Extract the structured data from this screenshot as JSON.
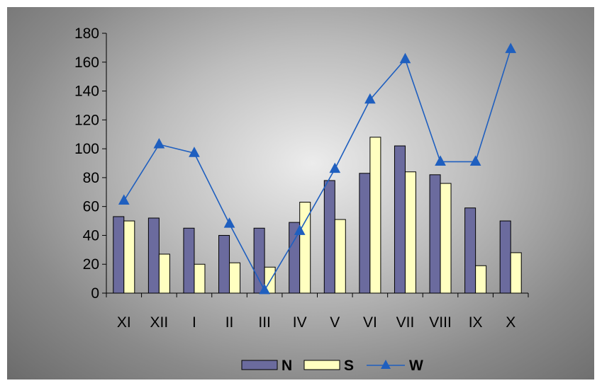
{
  "chart_data": {
    "type": "bar",
    "categories": [
      "XI",
      "XII",
      "I",
      "II",
      "III",
      "IV",
      "V",
      "VI",
      "VII",
      "VIII",
      "IX",
      "X"
    ],
    "series": [
      {
        "name": "N",
        "type": "bar",
        "color": "#6b6b9e",
        "values": [
          53,
          52,
          45,
          40,
          45,
          49,
          78,
          83,
          102,
          82,
          59,
          50
        ]
      },
      {
        "name": "S",
        "type": "bar",
        "color": "#ffffc0",
        "values": [
          50,
          27,
          20,
          21,
          18,
          63,
          51,
          108,
          84,
          76,
          19,
          28
        ]
      },
      {
        "name": "W",
        "type": "line",
        "marker": "triangle",
        "color": "#1f5fbf",
        "values": [
          64,
          103,
          97,
          48,
          2,
          43,
          86,
          134,
          162,
          91,
          91,
          169
        ]
      }
    ],
    "ylim": [
      0,
      180
    ],
    "yticks": [
      "0",
      "20",
      "40",
      "60",
      "80",
      "100",
      "120",
      "140",
      "160",
      "180"
    ],
    "grid": false,
    "legend_position": "bottom"
  }
}
